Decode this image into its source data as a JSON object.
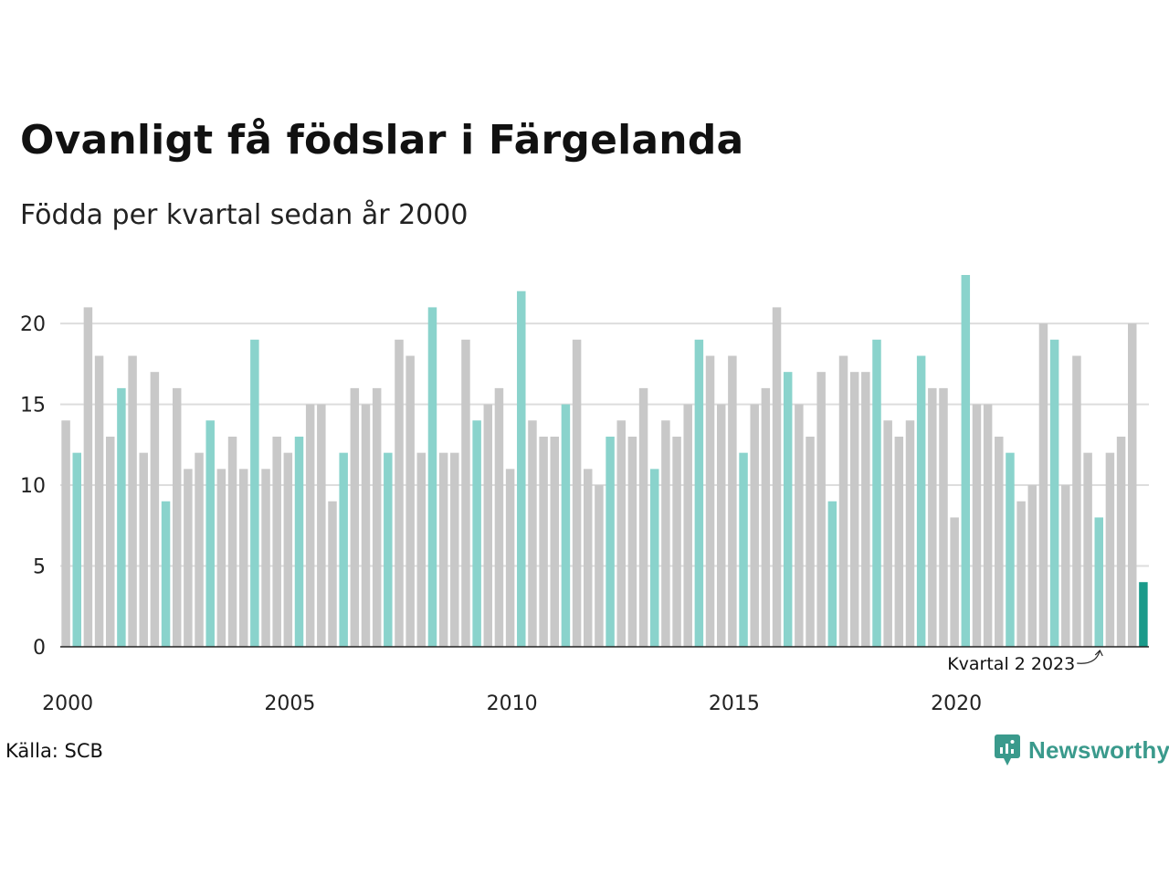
{
  "title": "Ovanligt få födslar i Färgelanda",
  "subtitle": "Födda per kvartal sedan år 2000",
  "source": "Källa: SCB",
  "logo": {
    "name": "newsworthy-logo-icon",
    "text": "Newsworthy"
  },
  "colors": {
    "bar_default": "#c8c8c8",
    "bar_quarter2": "#8ad3cc",
    "bar_latest": "#1a9a8a",
    "grid": "#dddddd",
    "axis": "#222222",
    "logo": "#3a9a8c"
  },
  "chart_data": {
    "type": "bar",
    "title": "Ovanligt få födslar i Färgelanda",
    "subtitle": "Födda per kvartal sedan år 2000",
    "ylim": [
      0,
      23
    ],
    "yticks": [
      0,
      5,
      10,
      15,
      20
    ],
    "xticks": [
      {
        "label": "2000",
        "year": 2000
      },
      {
        "label": "2005",
        "year": 2005
      },
      {
        "label": "2010",
        "year": 2010
      },
      {
        "label": "2015",
        "year": 2015
      },
      {
        "label": "2020",
        "year": 2020
      }
    ],
    "start_year": 2000,
    "grid": true,
    "highlight_quarter": 2,
    "values": [
      14,
      12,
      21,
      18,
      13,
      16,
      18,
      12,
      17,
      9,
      16,
      11,
      12,
      14,
      11,
      13,
      11,
      19,
      11,
      13,
      12,
      13,
      15,
      15,
      9,
      12,
      16,
      15,
      16,
      12,
      19,
      18,
      12,
      21,
      12,
      12,
      19,
      14,
      15,
      16,
      11,
      22,
      14,
      13,
      13,
      15,
      19,
      11,
      10,
      13,
      14,
      13,
      16,
      11,
      14,
      13,
      15,
      19,
      18,
      15,
      18,
      12,
      15,
      16,
      21,
      17,
      15,
      13,
      17,
      9,
      18,
      17,
      17,
      19,
      14,
      13,
      14,
      18,
      16,
      16,
      8,
      23,
      15,
      15,
      13,
      12,
      9,
      10,
      20,
      19,
      10,
      18,
      12,
      8,
      12,
      13,
      20,
      4
    ],
    "annotation": {
      "text": "Kvartal 2 2023",
      "index": 93
    }
  }
}
